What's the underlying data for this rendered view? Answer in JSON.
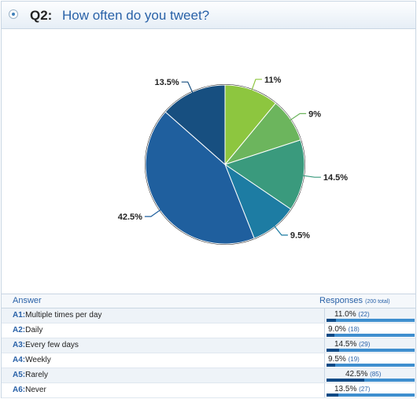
{
  "question": {
    "number": "Q2:",
    "text": "How often do you tweet?"
  },
  "table": {
    "answer_header": "Answer",
    "responses_header": "Responses",
    "total_label": "(200 total)",
    "rows": [
      {
        "code": "A1:",
        "label": "Multiple times per day",
        "percent": "11.0%",
        "count": "(22)",
        "fraction": 0.11
      },
      {
        "code": "A2:",
        "label": "Daily",
        "percent": "9.0%",
        "count": "(18)",
        "fraction": 0.09
      },
      {
        "code": "A3:",
        "label": "Every few days",
        "percent": "14.5%",
        "count": "(29)",
        "fraction": 0.145
      },
      {
        "code": "A4:",
        "label": "Weekly",
        "percent": "9.5%",
        "count": "(19)",
        "fraction": 0.095
      },
      {
        "code": "A5:",
        "label": "Rarely",
        "percent": "42.5%",
        "count": "(85)",
        "fraction": 0.425
      },
      {
        "code": "A6:",
        "label": "Never",
        "percent": "13.5%",
        "count": "(27)",
        "fraction": 0.135
      }
    ]
  },
  "chart_data": {
    "type": "pie",
    "title": "How often do you tweet?",
    "categories": [
      "Multiple times per day",
      "Daily",
      "Every few days",
      "Weekly",
      "Rarely",
      "Never"
    ],
    "values": [
      11,
      9,
      14.5,
      9.5,
      42.5,
      13.5
    ],
    "labels": [
      "11%",
      "9%",
      "14.5%",
      "9.5%",
      "42.5%",
      "13.5%"
    ],
    "colors": [
      "#8dc63f",
      "#6cb55d",
      "#3a9a7d",
      "#1d7ca3",
      "#1f5f9e",
      "#174f80"
    ]
  }
}
